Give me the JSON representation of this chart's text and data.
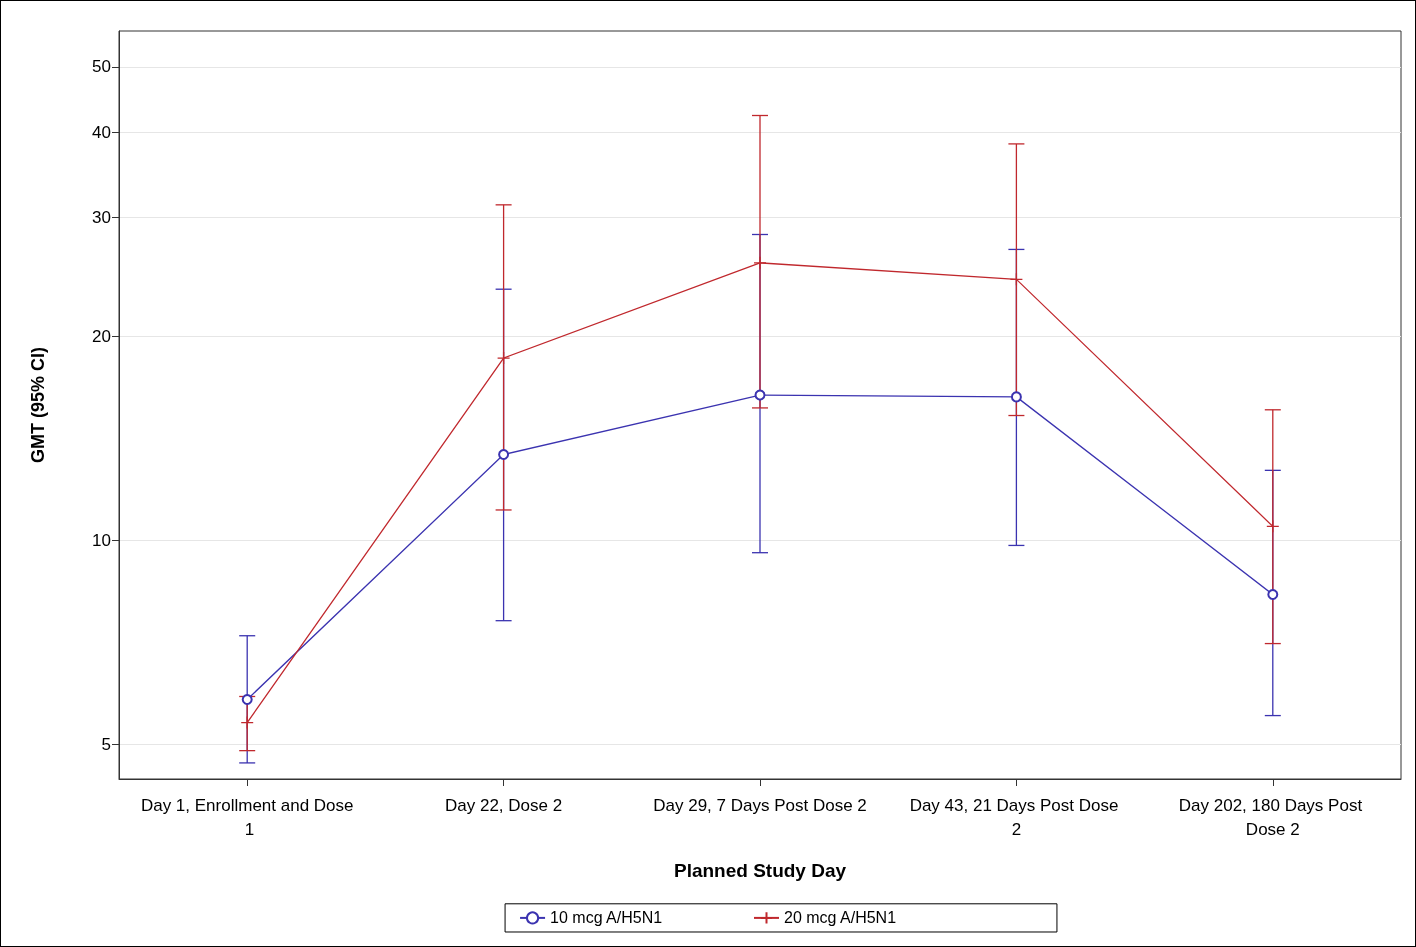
{
  "chart_data": {
    "type": "line",
    "xlabel": "Planned Study Day",
    "ylabel": "GMT (95% CI)",
    "categories": [
      "Day 1, Enrollment and Dose 1",
      "Day 22, Dose 2",
      "Day 29, 7 Days Post Dose 2",
      "Day 43, 21 Days Post Dose 2",
      "Day 202, 180 Days Post Dose 2"
    ],
    "series": [
      {
        "name": "10 mcg A/H5N1",
        "color": "#3b33b0",
        "marker": "circle",
        "values": [
          5.83,
          13.4,
          16.4,
          16.3,
          8.33
        ],
        "errors": [
          [
            4.7,
            7.24
          ],
          [
            7.62,
            23.5
          ],
          [
            9.6,
            28.3
          ],
          [
            9.84,
            26.9
          ],
          [
            5.52,
            12.7
          ]
        ]
      },
      {
        "name": "20 mcg A/H5N1",
        "color": "#c0282d",
        "marker": "cross",
        "values": [
          5.39,
          18.6,
          25.7,
          24.3,
          10.5
        ],
        "errors": [
          [
            4.9,
            5.89
          ],
          [
            11.1,
            31.3
          ],
          [
            15.7,
            42.4
          ],
          [
            15.3,
            38.5
          ],
          [
            7.05,
            15.6
          ]
        ]
      }
    ],
    "log": true,
    "ylim": [
      4.45,
      56.5
    ],
    "yticks": [
      5,
      10,
      20,
      30,
      40,
      50
    ],
    "grid": "y",
    "legend": "bottom",
    "line_style": "solid"
  }
}
